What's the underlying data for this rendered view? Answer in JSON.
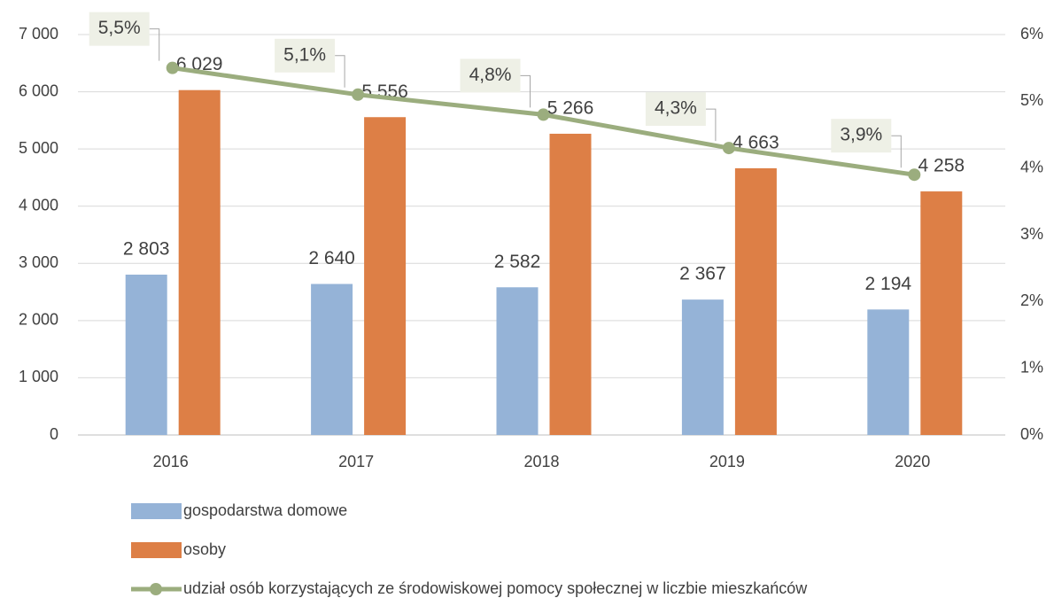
{
  "chart_data": {
    "type": "bar",
    "categories": [
      "2016",
      "2017",
      "2018",
      "2019",
      "2020"
    ],
    "series": [
      {
        "name": "gospodarstwa domowe",
        "type": "bar",
        "color": "#95b3d7",
        "values": [
          2803,
          2640,
          2582,
          2367,
          2194
        ],
        "value_labels": [
          "2 803",
          "2 640",
          "2 582",
          "2 367",
          "2 194"
        ]
      },
      {
        "name": "osoby",
        "type": "bar",
        "color": "#dd7f46",
        "values": [
          6029,
          5556,
          5266,
          4663,
          4258
        ],
        "value_labels": [
          "6 029",
          "5 556",
          "5 266",
          "4 663",
          "4 258"
        ]
      },
      {
        "name": "udział osób korzystających ze środowiskowej pomocy społecznej w liczbie mieszkańców",
        "type": "line",
        "axis": "y2",
        "color": "#9bad7e",
        "values": [
          5.5,
          5.1,
          4.8,
          4.3,
          3.9
        ],
        "value_labels": [
          "5,5%",
          "5,1%",
          "4,8%",
          "4,3%",
          "3,9%"
        ]
      }
    ],
    "ylim": [
      0,
      7000
    ],
    "yticks": [
      0,
      {
        "value": 1000,
        "label": "1 000"
      },
      {
        "value": 2000,
        "label": "2 000"
      },
      {
        "value": 3000,
        "label": "3 000"
      },
      {
        "value": 4000,
        "label": "4 000"
      },
      {
        "value": 5000,
        "label": "5 000"
      },
      {
        "value": 6000,
        "label": "6 000"
      },
      {
        "value": 7000,
        "label": "7 000"
      }
    ],
    "y2lim": [
      0,
      6
    ],
    "y2ticks": [
      {
        "value": 0,
        "label": "0%"
      },
      {
        "value": 1,
        "label": "1%"
      },
      {
        "value": 2,
        "label": "2%"
      },
      {
        "value": 3,
        "label": "3%"
      },
      {
        "value": 4,
        "label": "4%"
      },
      {
        "value": 5,
        "label": "5%"
      },
      {
        "value": 6,
        "label": "6%"
      }
    ],
    "grid": true,
    "legend": "bottom"
  }
}
